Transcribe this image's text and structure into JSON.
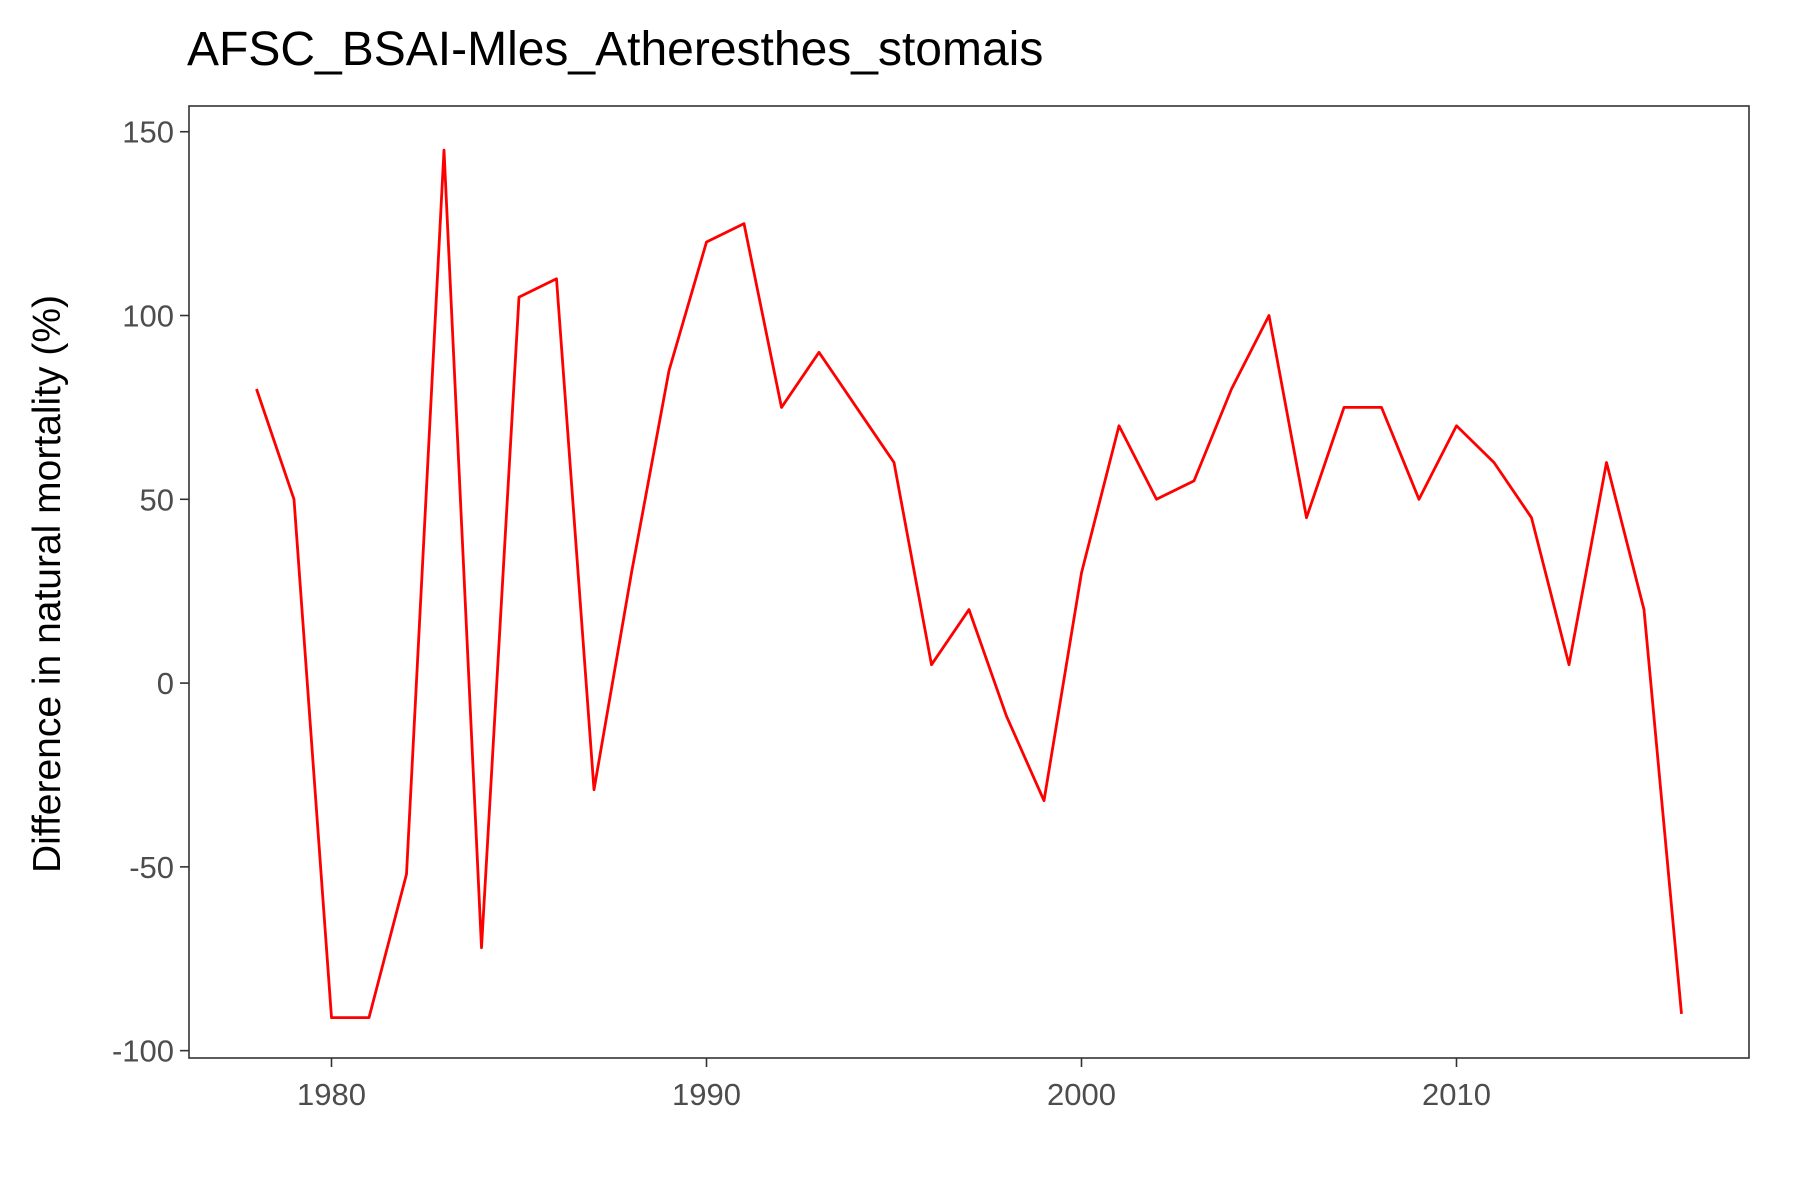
{
  "chart_data": {
    "type": "line",
    "title": "AFSC_BSAI-Mles_Atheresthes_stomais",
    "xlabel": "",
    "ylabel": "Difference in natural mortality (%)",
    "xlim": [
      1976.2,
      2017.8
    ],
    "ylim": [
      -102,
      157
    ],
    "x_ticks": [
      1980,
      1990,
      2000,
      2010
    ],
    "y_ticks": [
      -100,
      -50,
      0,
      50,
      100,
      150
    ],
    "x_tick_labels": [
      "1980",
      "1990",
      "2000",
      "2010"
    ],
    "y_tick_labels": [
      "-100",
      "-50",
      "0",
      "50",
      "100",
      "150"
    ],
    "grid": false,
    "line_color": "#ff0000",
    "series": [
      {
        "x": [
          1978,
          1979,
          1980,
          1981,
          1982,
          1983,
          1984,
          1985,
          1986,
          1987,
          1988,
          1989,
          1990,
          1991,
          1992,
          1993,
          1994,
          1995,
          1996,
          1997,
          1998,
          1999,
          2000,
          2001,
          2002,
          2003,
          2004,
          2005,
          2006,
          2007,
          2008,
          2009,
          2010,
          2011,
          2012,
          2013,
          2014,
          2015,
          2016
        ],
        "values": [
          80,
          50,
          -91,
          -91,
          -52,
          145,
          -72,
          105,
          110,
          -29,
          30,
          85,
          120,
          125,
          75,
          90,
          75,
          60,
          5,
          20,
          -9,
          -32,
          30,
          70,
          50,
          55,
          80,
          100,
          45,
          75,
          75,
          50,
          70,
          60,
          45,
          5,
          60,
          20,
          -90
        ]
      }
    ]
  }
}
